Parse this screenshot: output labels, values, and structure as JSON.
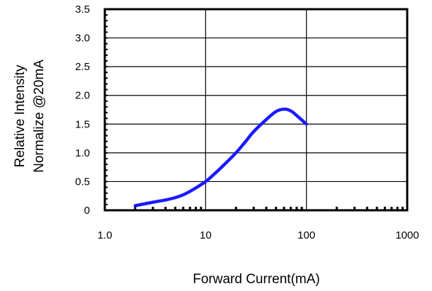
{
  "chart_data": {
    "type": "line",
    "title": "",
    "xlabel": "Forward Current(mA)",
    "ylabel_lines": [
      "Relative Intensity",
      "Normalize @20mA"
    ],
    "x_scale": "log",
    "xlim": [
      1,
      1000
    ],
    "ylim": [
      0,
      3.5
    ],
    "x_ticks": [
      {
        "value": 1,
        "label": "1.0"
      },
      {
        "value": 10,
        "label": "10"
      },
      {
        "value": 100,
        "label": "100"
      },
      {
        "value": 1000,
        "label": "1000"
      }
    ],
    "y_ticks": [
      {
        "value": 0,
        "label": "0"
      },
      {
        "value": 0.5,
        "label": "0.5"
      },
      {
        "value": 1.0,
        "label": "1.0"
      },
      {
        "value": 1.5,
        "label": "1.5"
      },
      {
        "value": 2.0,
        "label": "2.0"
      },
      {
        "value": 2.5,
        "label": "2.5"
      },
      {
        "value": 3.0,
        "label": "3.0"
      },
      {
        "value": 3.5,
        "label": "3.5"
      }
    ],
    "grid": true,
    "series": [
      {
        "color": "#1a1aff",
        "x": [
          2,
          3,
          4,
          5,
          6,
          7,
          8,
          10,
          12,
          15,
          20,
          25,
          30,
          40,
          50,
          60,
          70,
          80,
          100
        ],
        "y": [
          0.08,
          0.14,
          0.18,
          0.22,
          0.27,
          0.33,
          0.39,
          0.5,
          0.62,
          0.78,
          1.0,
          1.2,
          1.37,
          1.58,
          1.72,
          1.76,
          1.73,
          1.65,
          1.5
        ]
      }
    ]
  }
}
